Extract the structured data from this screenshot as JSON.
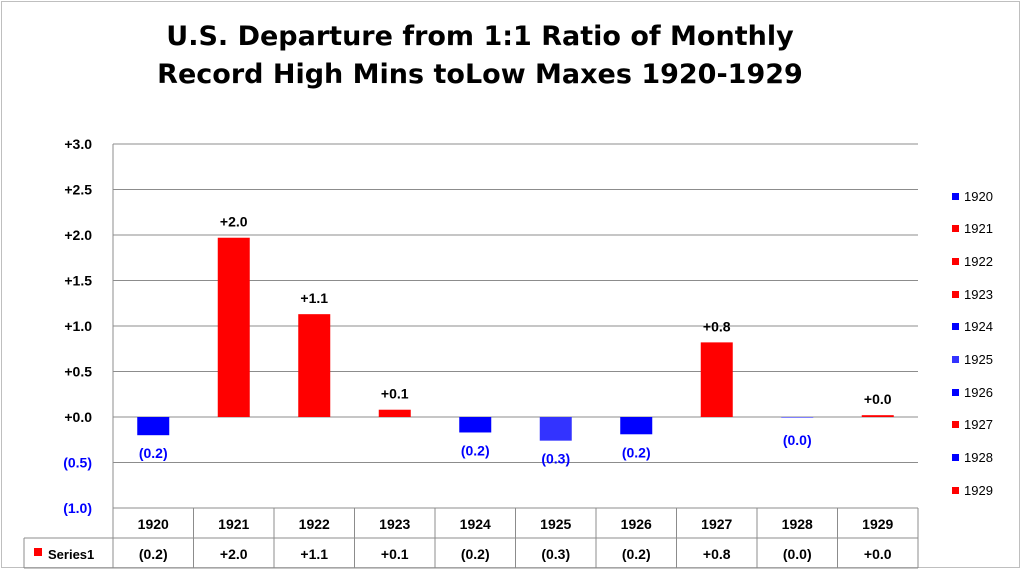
{
  "chart_data": {
    "type": "bar",
    "title_lines": [
      "U.S. Departure from 1:1 Ratio of Monthly",
      "Record High Mins toLow Maxes 1920-1929"
    ],
    "categories": [
      "1920",
      "1921",
      "1922",
      "1923",
      "1924",
      "1925",
      "1926",
      "1927",
      "1928",
      "1929"
    ],
    "series": [
      {
        "name": "Series1",
        "values": [
          -0.2,
          1.97,
          1.13,
          0.08,
          -0.17,
          -0.26,
          -0.19,
          0.82,
          -0.005,
          0.02
        ],
        "labels": [
          "(0.2)",
          "+2.0",
          "+1.1",
          "+0.1",
          "(0.2)",
          "(0.3)",
          "(0.2)",
          "+0.8",
          "(0.0)",
          "+0.0"
        ],
        "colors": [
          "#0000ff",
          "#ff0000",
          "#ff0000",
          "#ff0000",
          "#0000ff",
          "#3333ff",
          "#0000ff",
          "#ff0000",
          "#0000ff",
          "#ff0000"
        ]
      }
    ],
    "y_ticks": [
      "+3.0",
      "+2.5",
      "+2.0",
      "+1.5",
      "+1.0",
      "+0.5",
      "+0.0",
      "(0.5)",
      "(1.0)"
    ],
    "y_tick_colors": [
      "#000000",
      "#000000",
      "#000000",
      "#000000",
      "#000000",
      "#000000",
      "#000000",
      "#0000ff",
      "#0000ff"
    ],
    "ylim": [
      -1.0,
      3.0
    ],
    "grid": true,
    "data_table": true,
    "legend": {
      "position": "right",
      "entries": [
        "1920",
        "1921",
        "1922",
        "1923",
        "1924",
        "1925",
        "1926",
        "1927",
        "1928",
        "1929"
      ]
    },
    "positive_color": "#ff0000",
    "negative_color": "#0000ff",
    "label_color_negative": "#0000ff",
    "label_color_positive": "#000000"
  }
}
